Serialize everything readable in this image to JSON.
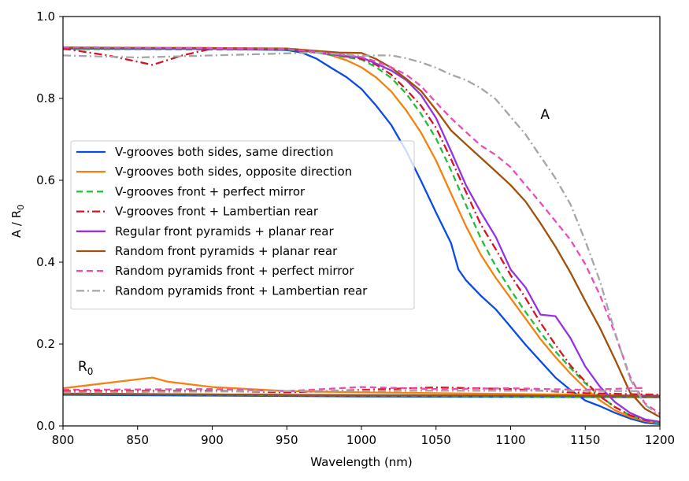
{
  "chart_data": {
    "type": "line",
    "xlabel": "Wavelength (nm)",
    "ylabel": "A / R",
    "ylabel_sub": "0",
    "xlim": [
      800,
      1200
    ],
    "ylim": [
      0.0,
      1.0
    ],
    "xticks": [
      "800",
      "850",
      "900",
      "950",
      "1000",
      "1050",
      "1100",
      "1150",
      "1200"
    ],
    "yticks": [
      "0.0",
      "0.2",
      "0.4",
      "0.6",
      "0.8",
      "1.0"
    ],
    "grid": false,
    "legend_position": "center-left",
    "annotations": [
      {
        "text": "A",
        "sub": "",
        "x": 1120,
        "y": 0.75
      },
      {
        "text": "R",
        "sub": "0",
        "x": 810,
        "y": 0.135
      }
    ],
    "series": [
      {
        "name": "V-grooves both sides, same direction",
        "color": "#0a4ae6",
        "dash": "solid",
        "A": [
          [
            800,
            0.922
          ],
          [
            850,
            0.921
          ],
          [
            900,
            0.921
          ],
          [
            950,
            0.918
          ],
          [
            960,
            0.912
          ],
          [
            970,
            0.897
          ],
          [
            980,
            0.874
          ],
          [
            990,
            0.852
          ],
          [
            1000,
            0.823
          ],
          [
            1010,
            0.782
          ],
          [
            1020,
            0.735
          ],
          [
            1030,
            0.672
          ],
          [
            1040,
            0.598
          ],
          [
            1050,
            0.521
          ],
          [
            1060,
            0.447
          ],
          [
            1065,
            0.382
          ],
          [
            1070,
            0.356
          ],
          [
            1080,
            0.318
          ],
          [
            1090,
            0.285
          ],
          [
            1100,
            0.242
          ],
          [
            1110,
            0.198
          ],
          [
            1120,
            0.158
          ],
          [
            1130,
            0.118
          ],
          [
            1140,
            0.088
          ],
          [
            1150,
            0.062
          ],
          [
            1160,
            0.048
          ],
          [
            1170,
            0.032
          ],
          [
            1180,
            0.018
          ],
          [
            1190,
            0.008
          ],
          [
            1200,
            0.004
          ]
        ],
        "R": [
          [
            800,
            0.076
          ],
          [
            900,
            0.074
          ],
          [
            1000,
            0.072
          ],
          [
            1100,
            0.071
          ],
          [
            1200,
            0.07
          ]
        ]
      },
      {
        "name": "V-grooves both sides, opposite direction",
        "color": "#f5820f",
        "dash": "solid",
        "A": [
          [
            800,
            0.925
          ],
          [
            850,
            0.923
          ],
          [
            900,
            0.922
          ],
          [
            950,
            0.921
          ],
          [
            960,
            0.918
          ],
          [
            970,
            0.913
          ],
          [
            980,
            0.905
          ],
          [
            990,
            0.893
          ],
          [
            1000,
            0.876
          ],
          [
            1010,
            0.851
          ],
          [
            1020,
            0.817
          ],
          [
            1030,
            0.771
          ],
          [
            1040,
            0.716
          ],
          [
            1050,
            0.648
          ],
          [
            1060,
            0.568
          ],
          [
            1070,
            0.488
          ],
          [
            1080,
            0.418
          ],
          [
            1090,
            0.362
          ],
          [
            1100,
            0.312
          ],
          [
            1110,
            0.262
          ],
          [
            1120,
            0.212
          ],
          [
            1130,
            0.168
          ],
          [
            1140,
            0.128
          ],
          [
            1150,
            0.092
          ],
          [
            1160,
            0.062
          ],
          [
            1170,
            0.038
          ],
          [
            1180,
            0.022
          ],
          [
            1190,
            0.012
          ],
          [
            1200,
            0.006
          ]
        ],
        "R": [
          [
            800,
            0.092
          ],
          [
            830,
            0.105
          ],
          [
            860,
            0.118
          ],
          [
            870,
            0.108
          ],
          [
            900,
            0.095
          ],
          [
            950,
            0.085
          ],
          [
            1000,
            0.082
          ],
          [
            1100,
            0.078
          ],
          [
            1200,
            0.074
          ]
        ]
      },
      {
        "name": "V-grooves front + perfect mirror",
        "color": "#1fbf3c",
        "dash": "8,5",
        "A": [
          [
            800,
            0.92
          ],
          [
            850,
            0.92
          ],
          [
            900,
            0.919
          ],
          [
            950,
            0.919
          ],
          [
            970,
            0.912
          ],
          [
            985,
            0.903
          ],
          [
            1000,
            0.895
          ],
          [
            1010,
            0.876
          ],
          [
            1020,
            0.85
          ],
          [
            1030,
            0.812
          ],
          [
            1040,
            0.762
          ],
          [
            1050,
            0.702
          ],
          [
            1060,
            0.625
          ],
          [
            1070,
            0.54
          ],
          [
            1080,
            0.458
          ],
          [
            1090,
            0.39
          ],
          [
            1100,
            0.332
          ],
          [
            1110,
            0.278
          ],
          [
            1120,
            0.228
          ],
          [
            1130,
            0.182
          ],
          [
            1140,
            0.142
          ],
          [
            1150,
            0.104
          ],
          [
            1160,
            0.072
          ],
          [
            1170,
            0.046
          ],
          [
            1180,
            0.026
          ],
          [
            1190,
            0.014
          ],
          [
            1200,
            0.006
          ]
        ],
        "R": [
          [
            800,
            0.078
          ],
          [
            900,
            0.076
          ],
          [
            1000,
            0.074
          ],
          [
            1100,
            0.072
          ],
          [
            1200,
            0.071
          ]
        ]
      },
      {
        "name": "V-grooves front + Lambertian rear",
        "color": "#d8121f",
        "dash": "10,4,2,4",
        "A": [
          [
            800,
            0.922
          ],
          [
            830,
            0.905
          ],
          [
            860,
            0.882
          ],
          [
            880,
            0.905
          ],
          [
            900,
            0.922
          ],
          [
            950,
            0.921
          ],
          [
            970,
            0.912
          ],
          [
            985,
            0.905
          ],
          [
            1000,
            0.897
          ],
          [
            1010,
            0.882
          ],
          [
            1020,
            0.858
          ],
          [
            1030,
            0.822
          ],
          [
            1040,
            0.782
          ],
          [
            1050,
            0.728
          ],
          [
            1060,
            0.652
          ],
          [
            1070,
            0.572
          ],
          [
            1080,
            0.492
          ],
          [
            1090,
            0.432
          ],
          [
            1100,
            0.368
          ],
          [
            1110,
            0.312
          ],
          [
            1120,
            0.252
          ],
          [
            1130,
            0.198
          ],
          [
            1140,
            0.148
          ],
          [
            1150,
            0.108
          ],
          [
            1160,
            0.072
          ],
          [
            1170,
            0.046
          ],
          [
            1180,
            0.026
          ],
          [
            1190,
            0.014
          ],
          [
            1200,
            0.008
          ]
        ],
        "R": [
          [
            800,
            0.085
          ],
          [
            900,
            0.086
          ],
          [
            950,
            0.082
          ],
          [
            1000,
            0.088
          ],
          [
            1050,
            0.094
          ],
          [
            1100,
            0.09
          ],
          [
            1150,
            0.08
          ],
          [
            1200,
            0.076
          ]
        ]
      },
      {
        "name": "Regular front pyramids + planar rear",
        "color": "#9334e0",
        "dash": "solid",
        "A": [
          [
            800,
            0.923
          ],
          [
            900,
            0.922
          ],
          [
            950,
            0.921
          ],
          [
            970,
            0.913
          ],
          [
            985,
            0.905
          ],
          [
            1000,
            0.9
          ],
          [
            1010,
            0.885
          ],
          [
            1020,
            0.868
          ],
          [
            1030,
            0.845
          ],
          [
            1040,
            0.808
          ],
          [
            1050,
            0.752
          ],
          [
            1060,
            0.672
          ],
          [
            1070,
            0.588
          ],
          [
            1080,
            0.522
          ],
          [
            1090,
            0.462
          ],
          [
            1100,
            0.382
          ],
          [
            1110,
            0.338
          ],
          [
            1120,
            0.272
          ],
          [
            1130,
            0.268
          ],
          [
            1140,
            0.215
          ],
          [
            1150,
            0.145
          ],
          [
            1160,
            0.095
          ],
          [
            1170,
            0.058
          ],
          [
            1180,
            0.032
          ],
          [
            1190,
            0.016
          ],
          [
            1200,
            0.01
          ]
        ],
        "R": [
          [
            800,
            0.079
          ],
          [
            900,
            0.077
          ],
          [
            1000,
            0.075
          ],
          [
            1100,
            0.074
          ],
          [
            1200,
            0.073
          ]
        ]
      },
      {
        "name": "Random front pyramids + planar rear",
        "color": "#a0500a",
        "dash": "solid",
        "A": [
          [
            800,
            0.924
          ],
          [
            900,
            0.923
          ],
          [
            950,
            0.922
          ],
          [
            970,
            0.916
          ],
          [
            985,
            0.912
          ],
          [
            1000,
            0.911
          ],
          [
            1010,
            0.896
          ],
          [
            1020,
            0.875
          ],
          [
            1030,
            0.848
          ],
          [
            1040,
            0.818
          ],
          [
            1050,
            0.772
          ],
          [
            1060,
            0.722
          ],
          [
            1070,
            0.688
          ],
          [
            1080,
            0.655
          ],
          [
            1090,
            0.622
          ],
          [
            1100,
            0.588
          ],
          [
            1110,
            0.548
          ],
          [
            1120,
            0.495
          ],
          [
            1130,
            0.438
          ],
          [
            1140,
            0.375
          ],
          [
            1150,
            0.305
          ],
          [
            1160,
            0.238
          ],
          [
            1170,
            0.162
          ],
          [
            1180,
            0.082
          ],
          [
            1190,
            0.042
          ],
          [
            1200,
            0.022
          ]
        ],
        "R": [
          [
            800,
            0.078
          ],
          [
            900,
            0.077
          ],
          [
            1000,
            0.075
          ],
          [
            1100,
            0.074
          ],
          [
            1200,
            0.072
          ]
        ]
      },
      {
        "name": "Random pyramids front + perfect mirror",
        "color": "#ec4cb4",
        "dash": "8,5",
        "A": [
          [
            800,
            0.925
          ],
          [
            900,
            0.923
          ],
          [
            950,
            0.921
          ],
          [
            975,
            0.912
          ],
          [
            1000,
            0.901
          ],
          [
            1010,
            0.89
          ],
          [
            1020,
            0.876
          ],
          [
            1030,
            0.858
          ],
          [
            1040,
            0.83
          ],
          [
            1050,
            0.79
          ],
          [
            1060,
            0.752
          ],
          [
            1070,
            0.718
          ],
          [
            1080,
            0.685
          ],
          [
            1090,
            0.662
          ],
          [
            1100,
            0.632
          ],
          [
            1110,
            0.588
          ],
          [
            1120,
            0.545
          ],
          [
            1130,
            0.5
          ],
          [
            1140,
            0.455
          ],
          [
            1150,
            0.395
          ],
          [
            1160,
            0.318
          ],
          [
            1170,
            0.225
          ],
          [
            1180,
            0.12
          ],
          [
            1190,
            0.055
          ],
          [
            1200,
            0.03
          ]
        ],
        "R": [
          [
            800,
            0.088
          ],
          [
            900,
            0.09
          ],
          [
            950,
            0.085
          ],
          [
            1000,
            0.095
          ],
          [
            1050,
            0.09
          ],
          [
            1100,
            0.092
          ],
          [
            1150,
            0.088
          ],
          [
            1190,
            0.093
          ]
        ]
      },
      {
        "name": "Random pyramids front + Lambertian rear",
        "color": "#a6a6a6",
        "dash": "10,4,2,4",
        "A": [
          [
            800,
            0.905
          ],
          [
            850,
            0.9
          ],
          [
            900,
            0.905
          ],
          [
            950,
            0.91
          ],
          [
            970,
            0.912
          ],
          [
            985,
            0.908
          ],
          [
            1000,
            0.904
          ],
          [
            1010,
            0.905
          ],
          [
            1020,
            0.905
          ],
          [
            1030,
            0.898
          ],
          [
            1040,
            0.888
          ],
          [
            1050,
            0.875
          ],
          [
            1060,
            0.858
          ],
          [
            1070,
            0.845
          ],
          [
            1080,
            0.825
          ],
          [
            1090,
            0.798
          ],
          [
            1100,
            0.755
          ],
          [
            1110,
            0.712
          ],
          [
            1120,
            0.658
          ],
          [
            1130,
            0.605
          ],
          [
            1140,
            0.542
          ],
          [
            1150,
            0.452
          ],
          [
            1160,
            0.352
          ],
          [
            1170,
            0.228
          ],
          [
            1180,
            0.115
          ],
          [
            1190,
            0.052
          ],
          [
            1200,
            0.025
          ]
        ],
        "R": [
          [
            800,
            0.082
          ],
          [
            900,
            0.084
          ],
          [
            1000,
            0.086
          ],
          [
            1100,
            0.086
          ],
          [
            1190,
            0.085
          ]
        ]
      }
    ]
  }
}
